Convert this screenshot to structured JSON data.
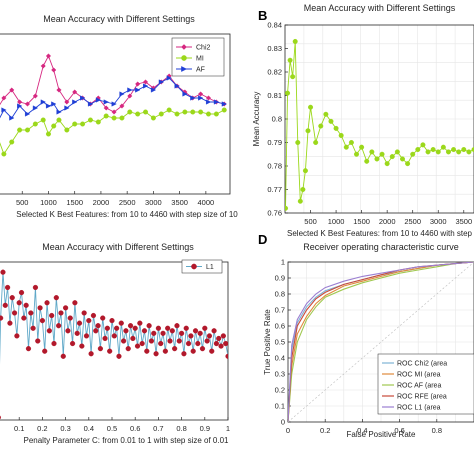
{
  "chart_data": [
    {
      "panel": "",
      "type": "line",
      "title": "Mean Accuracy with Different Settings",
      "xlabel": "Selected K Best Features:  from 10 to 4460 with step size of 10",
      "ylabel": "",
      "xlim": [
        0,
        4460
      ],
      "ylim": [
        0.76,
        0.84
      ],
      "x_ticks": [
        "500",
        "1000",
        "1500",
        "2000",
        "2500",
        "3000",
        "3500",
        "4000"
      ],
      "legend_position": "top-right",
      "series": [
        {
          "name": "Chi2",
          "color": "#d62780",
          "marker": "diamond",
          "x": [
            10,
            150,
            300,
            450,
            600,
            750,
            900,
            1000,
            1100,
            1200,
            1350,
            1500,
            1650,
            1800,
            1950,
            2100,
            2250,
            2400,
            2550,
            2700,
            2850,
            3000,
            3150,
            3300,
            3450,
            3600,
            3750,
            3900,
            4050,
            4200,
            4350
          ],
          "y": [
            0.802,
            0.808,
            0.812,
            0.806,
            0.805,
            0.809,
            0.824,
            0.829,
            0.822,
            0.812,
            0.806,
            0.811,
            0.808,
            0.805,
            0.808,
            0.803,
            0.801,
            0.804,
            0.809,
            0.815,
            0.816,
            0.813,
            0.816,
            0.819,
            0.814,
            0.811,
            0.808,
            0.81,
            0.808,
            0.806,
            0.805
          ]
        },
        {
          "name": "MI",
          "color": "#9bd81a",
          "marker": "circle",
          "x": [
            10,
            150,
            300,
            450,
            600,
            750,
            900,
            1000,
            1100,
            1200,
            1350,
            1500,
            1650,
            1800,
            1950,
            2100,
            2250,
            2400,
            2550,
            2700,
            2850,
            3000,
            3150,
            3300,
            3450,
            3600,
            3750,
            3900,
            4050,
            4200,
            4350
          ],
          "y": [
            0.79,
            0.78,
            0.786,
            0.792,
            0.792,
            0.795,
            0.797,
            0.79,
            0.794,
            0.797,
            0.792,
            0.795,
            0.795,
            0.797,
            0.796,
            0.799,
            0.798,
            0.798,
            0.801,
            0.8,
            0.801,
            0.798,
            0.8,
            0.802,
            0.8,
            0.801,
            0.801,
            0.801,
            0.8,
            0.8,
            0.802
          ]
        },
        {
          "name": "AF",
          "color": "#1f3fd6",
          "marker": "triangle",
          "x": [
            10,
            150,
            300,
            450,
            600,
            750,
            900,
            1000,
            1100,
            1200,
            1350,
            1500,
            1650,
            1800,
            1950,
            2100,
            2250,
            2400,
            2550,
            2700,
            2850,
            3000,
            3150,
            3300,
            3450,
            3600,
            3750,
            3900,
            4050,
            4200,
            4350
          ],
          "y": [
            0.795,
            0.802,
            0.798,
            0.804,
            0.8,
            0.803,
            0.806,
            0.804,
            0.805,
            0.801,
            0.803,
            0.806,
            0.808,
            0.805,
            0.807,
            0.806,
            0.805,
            0.81,
            0.812,
            0.812,
            0.814,
            0.812,
            0.816,
            0.818,
            0.814,
            0.81,
            0.808,
            0.808,
            0.806,
            0.806,
            0.805
          ]
        }
      ]
    },
    {
      "panel": "B",
      "type": "line",
      "title": "Mean Accuracy with Different Settings",
      "xlabel": "Selected K Best Features:  from 10 to 4460 with step",
      "ylabel": "Mean Accuracy",
      "xlim": [
        0,
        3700
      ],
      "ylim": [
        0.76,
        0.84
      ],
      "x_ticks": [
        "500",
        "1000",
        "1500",
        "2000",
        "2500",
        "3000",
        "3500"
      ],
      "y_ticks": [
        "0.76",
        "0.77",
        "0.78",
        "0.79",
        "0.8",
        "0.81",
        "0.82",
        "0.83",
        "0.84"
      ],
      "series": [
        {
          "name": "",
          "color": "#9bd81a",
          "marker": "circle",
          "x": [
            10,
            50,
            100,
            150,
            200,
            250,
            300,
            350,
            400,
            450,
            500,
            600,
            700,
            800,
            900,
            1000,
            1100,
            1200,
            1300,
            1400,
            1500,
            1600,
            1700,
            1800,
            1900,
            2000,
            2100,
            2200,
            2300,
            2400,
            2500,
            2600,
            2700,
            2800,
            2900,
            3000,
            3100,
            3200,
            3300,
            3400,
            3500,
            3600,
            3700
          ],
          "y": [
            0.762,
            0.811,
            0.825,
            0.818,
            0.833,
            0.79,
            0.765,
            0.77,
            0.778,
            0.795,
            0.805,
            0.79,
            0.797,
            0.802,
            0.799,
            0.796,
            0.793,
            0.788,
            0.79,
            0.785,
            0.788,
            0.782,
            0.786,
            0.783,
            0.785,
            0.781,
            0.784,
            0.786,
            0.783,
            0.781,
            0.785,
            0.787,
            0.789,
            0.786,
            0.787,
            0.786,
            0.788,
            0.786,
            0.787,
            0.786,
            0.787,
            0.786,
            0.787
          ]
        }
      ]
    },
    {
      "panel": "",
      "type": "line",
      "title": "Mean Accuracy with Different Settings",
      "xlabel": "Penalty Parameter C:  from 0.01 to 1 with step size of 0.01",
      "ylabel": "",
      "xlim": [
        0,
        1
      ],
      "ylim": [
        0.77,
        0.832
      ],
      "x_ticks": [
        "0.1",
        "0.2",
        "0.3",
        "0.4",
        "0.5",
        "0.6",
        "0.7",
        "0.8",
        "0.9",
        "1"
      ],
      "legend_position": "top-right",
      "series": [
        {
          "name": "L1",
          "color": "#5fa8c8",
          "marker_color": "#b2182b",
          "marker": "circle",
          "x": [
            0.01,
            0.02,
            0.03,
            0.04,
            0.05,
            0.06,
            0.07,
            0.08,
            0.09,
            0.1,
            0.11,
            0.12,
            0.13,
            0.14,
            0.15,
            0.16,
            0.17,
            0.18,
            0.19,
            0.2,
            0.21,
            0.22,
            0.23,
            0.24,
            0.25,
            0.26,
            0.27,
            0.28,
            0.29,
            0.3,
            0.31,
            0.32,
            0.33,
            0.34,
            0.35,
            0.36,
            0.37,
            0.38,
            0.39,
            0.4,
            0.41,
            0.42,
            0.43,
            0.44,
            0.45,
            0.46,
            0.47,
            0.48,
            0.49,
            0.5,
            0.51,
            0.52,
            0.53,
            0.54,
            0.55,
            0.56,
            0.57,
            0.58,
            0.59,
            0.6,
            0.61,
            0.62,
            0.63,
            0.64,
            0.65,
            0.66,
            0.67,
            0.68,
            0.69,
            0.7,
            0.71,
            0.72,
            0.73,
            0.74,
            0.75,
            0.76,
            0.77,
            0.78,
            0.79,
            0.8,
            0.81,
            0.82,
            0.83,
            0.84,
            0.85,
            0.86,
            0.87,
            0.88,
            0.89,
            0.9,
            0.91,
            0.92,
            0.93,
            0.94,
            0.95,
            0.96,
            0.97,
            0.98,
            0.99,
            1.0
          ],
          "y": [
            0.771,
            0.81,
            0.828,
            0.815,
            0.822,
            0.808,
            0.818,
            0.812,
            0.803,
            0.816,
            0.82,
            0.81,
            0.815,
            0.798,
            0.812,
            0.806,
            0.822,
            0.801,
            0.814,
            0.809,
            0.797,
            0.816,
            0.805,
            0.811,
            0.8,
            0.818,
            0.807,
            0.812,
            0.795,
            0.814,
            0.805,
            0.81,
            0.8,
            0.816,
            0.804,
            0.808,
            0.799,
            0.812,
            0.803,
            0.809,
            0.796,
            0.811,
            0.805,
            0.807,
            0.798,
            0.81,
            0.802,
            0.806,
            0.797,
            0.809,
            0.803,
            0.806,
            0.795,
            0.808,
            0.801,
            0.805,
            0.798,
            0.807,
            0.802,
            0.806,
            0.799,
            0.808,
            0.8,
            0.805,
            0.797,
            0.807,
            0.801,
            0.804,
            0.796,
            0.806,
            0.8,
            0.804,
            0.797,
            0.806,
            0.801,
            0.805,
            0.798,
            0.807,
            0.801,
            0.804,
            0.796,
            0.806,
            0.8,
            0.803,
            0.797,
            0.805,
            0.8,
            0.804,
            0.798,
            0.806,
            0.801,
            0.803,
            0.797,
            0.805,
            0.8,
            0.802,
            0.799,
            0.803,
            0.8,
            0.795
          ]
        }
      ]
    },
    {
      "panel": "D",
      "type": "line",
      "title": "Receiver operating characteristic curve",
      "xlabel": "False Positive Rate",
      "ylabel": "True Positive Rate",
      "xlim": [
        0,
        1
      ],
      "ylim": [
        0,
        1
      ],
      "x_ticks": [
        "0",
        "0.2",
        "0.4",
        "0.6",
        "0.8"
      ],
      "y_ticks": [
        "0",
        "0.1",
        "0.2",
        "0.3",
        "0.4",
        "0.5",
        "0.6",
        "0.7",
        "0.8",
        "0.9",
        "1"
      ],
      "legend_position": "bottom-right",
      "series": [
        {
          "name": "ROC  Chi2 (area",
          "color": "#7fb3d5",
          "x": [
            0,
            0.02,
            0.05,
            0.1,
            0.15,
            0.2,
            0.3,
            0.4,
            0.5,
            0.6,
            0.7,
            0.8,
            0.9,
            1
          ],
          "y": [
            0,
            0.45,
            0.62,
            0.72,
            0.78,
            0.82,
            0.86,
            0.89,
            0.92,
            0.94,
            0.96,
            0.98,
            0.99,
            1
          ]
        },
        {
          "name": "ROC  MI (area",
          "color": "#e08a3c",
          "x": [
            0,
            0.02,
            0.05,
            0.1,
            0.15,
            0.2,
            0.3,
            0.4,
            0.5,
            0.6,
            0.7,
            0.8,
            0.9,
            1
          ],
          "y": [
            0,
            0.35,
            0.55,
            0.66,
            0.74,
            0.79,
            0.85,
            0.88,
            0.91,
            0.94,
            0.96,
            0.98,
            0.99,
            1
          ]
        },
        {
          "name": "ROC  AF (area",
          "color": "#a0c850",
          "x": [
            0,
            0.02,
            0.05,
            0.1,
            0.15,
            0.2,
            0.3,
            0.4,
            0.5,
            0.6,
            0.7,
            0.8,
            0.9,
            1
          ],
          "y": [
            0,
            0.3,
            0.5,
            0.64,
            0.72,
            0.78,
            0.83,
            0.87,
            0.9,
            0.93,
            0.95,
            0.97,
            0.99,
            1
          ]
        },
        {
          "name": "ROC  RFE (area",
          "color": "#c94a3a",
          "x": [
            0,
            0.02,
            0.05,
            0.1,
            0.15,
            0.2,
            0.3,
            0.4,
            0.5,
            0.6,
            0.7,
            0.8,
            0.9,
            1
          ],
          "y": [
            0,
            0.4,
            0.6,
            0.7,
            0.77,
            0.81,
            0.86,
            0.89,
            0.92,
            0.95,
            0.97,
            0.98,
            0.99,
            1
          ]
        },
        {
          "name": "ROC  L1 (area",
          "color": "#9b7fd1",
          "x": [
            0,
            0.02,
            0.05,
            0.1,
            0.15,
            0.2,
            0.3,
            0.4,
            0.5,
            0.6,
            0.7,
            0.8,
            0.9,
            1
          ],
          "y": [
            0,
            0.48,
            0.64,
            0.74,
            0.8,
            0.84,
            0.88,
            0.91,
            0.93,
            0.95,
            0.97,
            0.98,
            0.99,
            1
          ]
        }
      ]
    }
  ]
}
